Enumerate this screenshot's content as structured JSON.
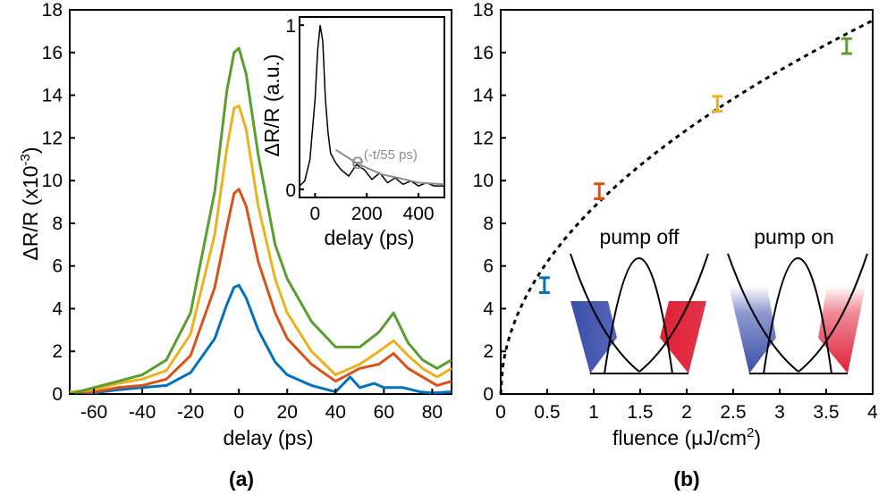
{
  "chart_data": [
    {
      "panel": "(a)",
      "type": "line",
      "xlabel": "delay (ps)",
      "ylabel": "ΔR/R (x10",
      "ylabel_exp": "-3",
      "ylabel_close": ")",
      "xlim": [
        -70,
        88
      ],
      "ylim": [
        0,
        18
      ],
      "xticks": [
        -60,
        -40,
        -20,
        0,
        20,
        40,
        60,
        80
      ],
      "yticks": [
        0,
        2,
        4,
        6,
        8,
        10,
        12,
        14,
        16,
        18
      ],
      "series": [
        {
          "color": "#0072bd",
          "points": [
            [
              -70,
              0.1
            ],
            [
              -60,
              0.05
            ],
            [
              -50,
              0.2
            ],
            [
              -40,
              0.3
            ],
            [
              -30,
              0.4
            ],
            [
              -20,
              1.0
            ],
            [
              -10,
              2.6
            ],
            [
              -5,
              4.2
            ],
            [
              -2,
              5.0
            ],
            [
              0,
              5.1
            ],
            [
              3,
              4.5
            ],
            [
              8,
              3.0
            ],
            [
              15,
              1.5
            ],
            [
              20,
              0.9
            ],
            [
              30,
              0.4
            ],
            [
              40,
              0.1
            ],
            [
              46,
              0.8
            ],
            [
              50,
              0.3
            ],
            [
              56,
              0.5
            ],
            [
              60,
              0.3
            ],
            [
              68,
              0.3
            ],
            [
              75,
              0.1
            ],
            [
              80,
              0.05
            ],
            [
              88,
              0.1
            ]
          ]
        },
        {
          "color": "#d95319",
          "points": [
            [
              -70,
              0.1
            ],
            [
              -60,
              0.1
            ],
            [
              -50,
              0.3
            ],
            [
              -40,
              0.4
            ],
            [
              -30,
              0.7
            ],
            [
              -20,
              1.8
            ],
            [
              -10,
              5.0
            ],
            [
              -5,
              7.8
            ],
            [
              -2,
              9.4
            ],
            [
              0,
              9.6
            ],
            [
              3,
              8.8
            ],
            [
              8,
              6.2
            ],
            [
              15,
              3.8
            ],
            [
              20,
              2.6
            ],
            [
              30,
              1.4
            ],
            [
              40,
              0.6
            ],
            [
              50,
              1.2
            ],
            [
              58,
              1.4
            ],
            [
              64,
              1.9
            ],
            [
              70,
              1.2
            ],
            [
              76,
              0.8
            ],
            [
              82,
              0.4
            ],
            [
              88,
              0.6
            ]
          ]
        },
        {
          "color": "#edb120",
          "points": [
            [
              -70,
              0.1
            ],
            [
              -60,
              0.2
            ],
            [
              -50,
              0.5
            ],
            [
              -40,
              0.7
            ],
            [
              -30,
              1.1
            ],
            [
              -20,
              2.8
            ],
            [
              -10,
              7.5
            ],
            [
              -5,
              11.5
            ],
            [
              -2,
              13.4
            ],
            [
              0,
              13.5
            ],
            [
              3,
              12.4
            ],
            [
              8,
              8.8
            ],
            [
              15,
              5.4
            ],
            [
              20,
              3.8
            ],
            [
              30,
              2.0
            ],
            [
              40,
              0.9
            ],
            [
              50,
              1.4
            ],
            [
              58,
              2.0
            ],
            [
              64,
              2.5
            ],
            [
              70,
              1.8
            ],
            [
              76,
              1.2
            ],
            [
              82,
              0.8
            ],
            [
              88,
              1.2
            ]
          ]
        },
        {
          "color": "#5a9e2f",
          "points": [
            [
              -70,
              0.0
            ],
            [
              -60,
              0.3
            ],
            [
              -50,
              0.6
            ],
            [
              -40,
              0.9
            ],
            [
              -30,
              1.6
            ],
            [
              -20,
              3.8
            ],
            [
              -10,
              9.5
            ],
            [
              -5,
              14.2
            ],
            [
              -2,
              16.0
            ],
            [
              0,
              16.2
            ],
            [
              3,
              15.0
            ],
            [
              8,
              11.2
            ],
            [
              15,
              7.0
            ],
            [
              20,
              5.4
            ],
            [
              30,
              3.4
            ],
            [
              40,
              2.2
            ],
            [
              50,
              2.2
            ],
            [
              58,
              2.9
            ],
            [
              64,
              3.8
            ],
            [
              70,
              2.4
            ],
            [
              76,
              1.6
            ],
            [
              82,
              1.2
            ],
            [
              88,
              1.6
            ]
          ]
        }
      ],
      "inset": {
        "type": "line",
        "xlabel": "delay (ps)",
        "ylabel": "ΔR/R (a.u.)",
        "xticks": [
          0,
          200,
          400
        ],
        "yticks": [
          0,
          1
        ],
        "xlim": [
          -60,
          500
        ],
        "ylim": [
          -0.05,
          1.05
        ],
        "fit_label_base": "e",
        "fit_label_exp": "(-t/55 ps)",
        "series": [
          {
            "color": "#000000",
            "points": [
              [
                -60,
                0.02
              ],
              [
                -40,
                0.05
              ],
              [
                -20,
                0.18
              ],
              [
                0,
                0.55
              ],
              [
                10,
                0.85
              ],
              [
                20,
                1.0
              ],
              [
                30,
                0.9
              ],
              [
                40,
                0.55
              ],
              [
                50,
                0.35
              ],
              [
                60,
                0.22
              ],
              [
                80,
                0.16
              ],
              [
                100,
                0.12
              ],
              [
                130,
                0.08
              ],
              [
                160,
                0.15
              ],
              [
                190,
                0.12
              ],
              [
                220,
                0.06
              ],
              [
                250,
                0.1
              ],
              [
                280,
                0.04
              ],
              [
                310,
                0.07
              ],
              [
                340,
                0.03
              ],
              [
                370,
                0.05
              ],
              [
                400,
                0.02
              ],
              [
                430,
                0.04
              ],
              [
                460,
                0.02
              ],
              [
                500,
                0.02
              ]
            ]
          }
        ],
        "fit": {
          "color": "#8c8c8c",
          "points": [
            [
              80,
              0.24
            ],
            [
              120,
              0.2
            ],
            [
              160,
              0.16
            ],
            [
              200,
              0.13
            ],
            [
              260,
              0.09
            ],
            [
              320,
              0.07
            ],
            [
              400,
              0.04
            ],
            [
              500,
              0.03
            ]
          ]
        }
      }
    },
    {
      "panel": "(b)",
      "type": "scatter",
      "xlabel": "fluence (μJ/cm",
      "xlabel_exp": "2",
      "xlabel_close": ")",
      "xlim": [
        0,
        4
      ],
      "ylim": [
        0,
        18
      ],
      "xticks": [
        0,
        0.5,
        1,
        1.5,
        2,
        2.5,
        3,
        3.5,
        4
      ],
      "xtick_labels": [
        "0",
        "0.5",
        "1",
        "1.5",
        "2",
        "2.5",
        "3",
        "3.5",
        "4"
      ],
      "yticks": [
        0,
        2,
        4,
        6,
        8,
        10,
        12,
        14,
        16,
        18
      ],
      "points": [
        {
          "x": 0.47,
          "y": 5.1,
          "err": 0.35,
          "color": "#0072bd"
        },
        {
          "x": 1.06,
          "y": 9.5,
          "err": 0.35,
          "color": "#d95319"
        },
        {
          "x": 2.33,
          "y": 13.6,
          "err": 0.35,
          "color": "#edb120"
        },
        {
          "x": 3.72,
          "y": 16.3,
          "err": 0.35,
          "color": "#5a9e2f"
        }
      ],
      "fit": {
        "style": "dashed",
        "color": "#000000",
        "function": "sqrt",
        "x_range": [
          0,
          4
        ],
        "coefficient": 8.75
      },
      "annotations": [
        "pump off",
        "pump on"
      ]
    }
  ]
}
